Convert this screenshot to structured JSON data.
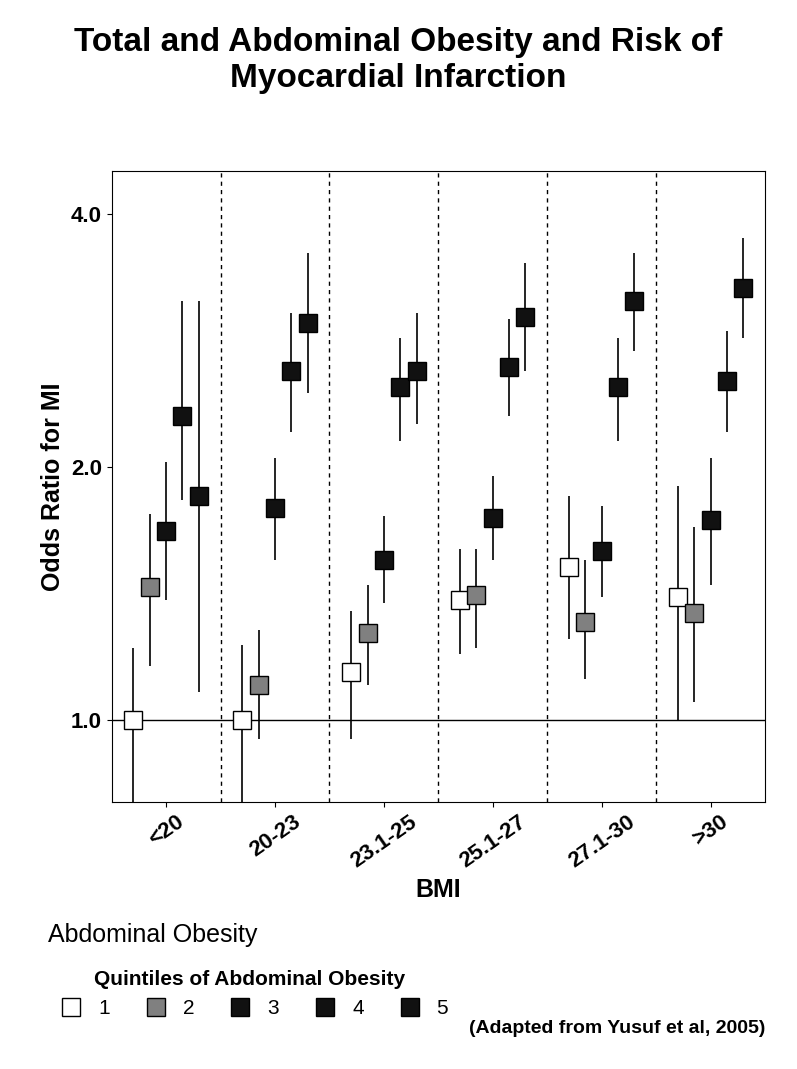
{
  "chart_data": {
    "type": "scatter",
    "title": "Total and Abdominal Obesity and Risk of Myocardial Infarction",
    "x_label": "BMI",
    "y_label": "Odds Ratio for MI",
    "annotations": [
      "Abdominal Obesity",
      "(Adapted from Yusuf et al, 2005)"
    ],
    "legend_title": "Quintiles of Abdominal Obesity",
    "legend": "lower left",
    "log": "y",
    "marker": "s",
    "categories": [
      "<20",
      "20-23",
      "23.1-25",
      "25.1-27",
      "27.1-30",
      ">30"
    ],
    "ylim": [
      0.8,
      4.5
    ],
    "yticks": [
      {
        "value": 1,
        "label": "1.0"
      },
      {
        "value": 2,
        "label": "2.0"
      },
      {
        "value": 4,
        "label": "4.0"
      }
    ],
    "series": [
      {
        "name": "1",
        "color": "#ffffff",
        "values": [
          1.0,
          1.0,
          1.14,
          1.39,
          1.52,
          1.4
        ],
        "ci_low": [
          0.8,
          0.8,
          0.95,
          1.2,
          1.25,
          1.0
        ],
        "ci_high": [
          1.22,
          1.23,
          1.35,
          1.6,
          1.85,
          1.9
        ]
      },
      {
        "name": "2",
        "color": "#808080",
        "values": [
          1.44,
          1.1,
          1.27,
          1.41,
          1.31,
          1.34
        ],
        "ci_low": [
          1.16,
          0.95,
          1.1,
          1.22,
          1.12,
          1.05
        ],
        "ci_high": [
          1.76,
          1.28,
          1.45,
          1.6,
          1.55,
          1.7
        ]
      },
      {
        "name": "3",
        "color": "#111111",
        "values": [
          1.68,
          1.79,
          1.55,
          1.74,
          1.59,
          1.73
        ],
        "ci_low": [
          1.39,
          1.55,
          1.38,
          1.55,
          1.4,
          1.45
        ],
        "ci_high": [
          2.03,
          2.05,
          1.75,
          1.95,
          1.8,
          2.05
        ]
      },
      {
        "name": "4",
        "color": "#111111",
        "values": [
          2.3,
          2.6,
          2.49,
          2.63,
          2.49,
          2.53
        ],
        "ci_low": [
          1.83,
          2.2,
          2.15,
          2.3,
          2.15,
          2.2
        ],
        "ci_high": [
          3.15,
          3.05,
          2.85,
          3.0,
          2.85,
          2.9
        ]
      },
      {
        "name": "5",
        "color": "#111111",
        "values": [
          1.85,
          2.97,
          2.6,
          3.02,
          3.15,
          3.27
        ],
        "ci_low": [
          1.08,
          2.45,
          2.25,
          2.6,
          2.75,
          2.85
        ],
        "ci_high": [
          3.15,
          3.6,
          3.05,
          3.5,
          3.6,
          3.75
        ]
      }
    ]
  }
}
